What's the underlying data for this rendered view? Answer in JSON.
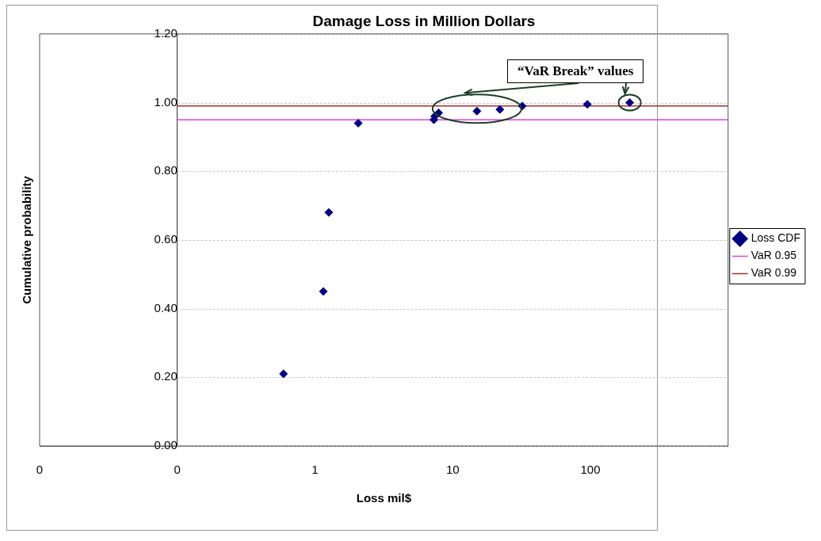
{
  "chart_data": {
    "type": "scatter",
    "title": "Damage Loss in Million Dollars",
    "xlabel": "Loss mil$",
    "ylabel": "Cumulative probability",
    "log": "x",
    "xlim": [
      0.01,
      1000
    ],
    "xticks": [
      {
        "value": 0.01,
        "label": "0"
      },
      {
        "value": 0.1,
        "label": "0"
      },
      1,
      10,
      100
    ],
    "ylim": [
      0,
      1.2
    ],
    "yticks": [
      {
        "value": 0,
        "label": "0.00"
      },
      {
        "value": 0.2,
        "label": "0.20"
      },
      {
        "value": 0.4,
        "label": "0.40"
      },
      {
        "value": 0.6,
        "label": "0.60"
      },
      {
        "value": 0.8,
        "label": "0.80"
      },
      {
        "value": 1,
        "label": "1.00"
      },
      {
        "value": 1.2,
        "label": "1.20"
      }
    ],
    "grid": "y",
    "legend": "right",
    "series": [
      {
        "name": "Loss CDF",
        "type": "scatter",
        "marker": "diamond",
        "color": "#000080",
        "x": [
          0.59,
          1.15,
          1.26,
          2.06,
          7.3,
          7.4,
          7.9,
          15,
          22,
          32,
          95,
          193
        ],
        "values": [
          0.21,
          0.45,
          0.68,
          0.94,
          0.95,
          0.96,
          0.97,
          0.975,
          0.98,
          0.99,
          0.995,
          1.0
        ]
      },
      {
        "name": "VaR 0.95",
        "type": "line",
        "marker": "none",
        "color": "#e040e0",
        "x": [
          0.1,
          1000
        ],
        "values": [
          0.95,
          0.95
        ]
      },
      {
        "name": "VaR 0.99",
        "type": "line",
        "marker": "none",
        "color": "#a03030",
        "x": [
          0.1,
          1000
        ],
        "values": [
          0.99,
          0.99
        ]
      }
    ],
    "annotations": [
      "“VaR Break” values"
    ]
  }
}
